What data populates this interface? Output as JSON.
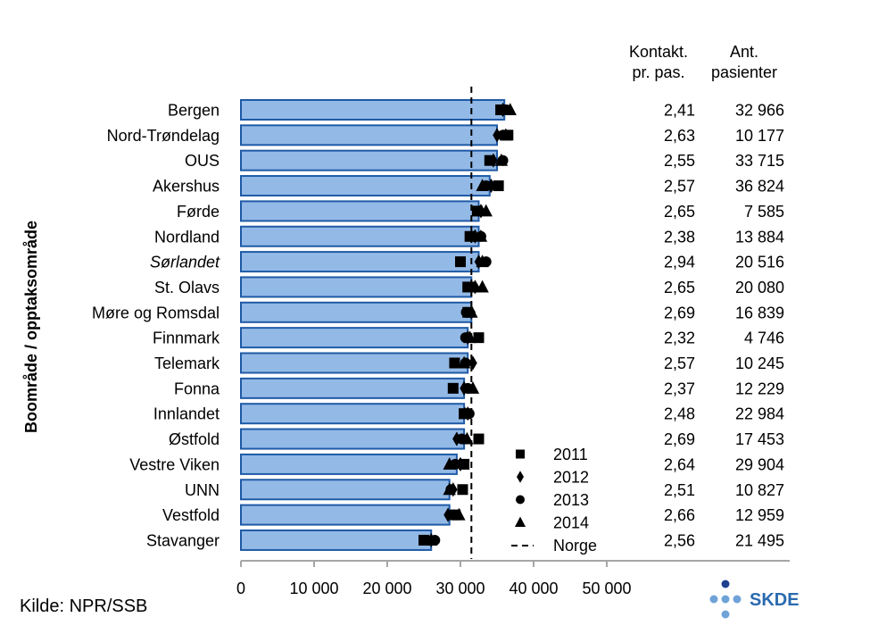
{
  "chart_data": {
    "type": "bar",
    "orientation": "horizontal",
    "ylabel": "Boområde / opptaksområde",
    "categories": [
      "Bergen",
      "Nord-Trøndelag",
      "OUS",
      "Akershus",
      "Førde",
      "Nordland",
      "Sørlandet",
      "St. Olavs",
      "Møre og Romsdal",
      "Finnmark",
      "Telemark",
      "Fonna",
      "Innlandet",
      "Østfold",
      "Vestre Viken",
      "UNN",
      "Vestfold",
      "Stavanger"
    ],
    "italic_categories": [
      "Sørlandet"
    ],
    "values": [
      36000,
      35000,
      35000,
      34000,
      32500,
      32500,
      32500,
      31500,
      31500,
      31000,
      31000,
      30500,
      30500,
      30500,
      29500,
      28500,
      28500,
      26000
    ],
    "series": [
      {
        "name": "2011",
        "marker": "square",
        "values": [
          35500,
          36500,
          34000,
          35200,
          32300,
          31300,
          30000,
          31000,
          31000,
          32500,
          29200,
          29000,
          30500,
          32500,
          30500,
          30300,
          29300,
          25000
        ]
      },
      {
        "name": "2012",
        "marker": "diamond",
        "values": [
          35800,
          35000,
          34500,
          34200,
          32800,
          32000,
          32500,
          32000,
          31500,
          31000,
          31700,
          30500,
          31000,
          29500,
          30000,
          29000,
          28300,
          26000
        ]
      },
      {
        "name": "2013",
        "marker": "circle",
        "values": [
          36300,
          35800,
          35800,
          33500,
          32500,
          32800,
          33500,
          31700,
          30800,
          30700,
          30700,
          31000,
          31200,
          30200,
          29300,
          28700,
          29000,
          26500
        ]
      },
      {
        "name": "2014",
        "marker": "triangle",
        "values": [
          36800,
          36200,
          35600,
          33000,
          33500,
          32800,
          33000,
          33000,
          31500,
          31300,
          30500,
          31700,
          30600,
          30900,
          28500,
          28500,
          29800,
          26000
        ]
      }
    ],
    "reference_line": {
      "name": "Norge",
      "value": 31500
    },
    "xlim": [
      0,
      50000
    ],
    "xticks": [
      "0",
      "10 000",
      "20 000",
      "30 000",
      "40 000",
      "50 000"
    ],
    "xtick_values": [
      0,
      10000,
      20000,
      30000,
      40000,
      50000
    ],
    "legend_position": "inside-right",
    "table": {
      "col1_header": [
        "Kontakt.",
        "pr. pas."
      ],
      "col2_header": [
        "Ant.",
        "pasienter"
      ],
      "col1": [
        "2,41",
        "2,63",
        "2,55",
        "2,57",
        "2,65",
        "2,38",
        "2,94",
        "2,65",
        "2,69",
        "2,32",
        "2,57",
        "2,37",
        "2,48",
        "2,69",
        "2,64",
        "2,51",
        "2,66",
        "2,56"
      ],
      "col2": [
        "32 966",
        "10 177",
        "33 715",
        "36 824",
        "7 585",
        "13 884",
        "20 516",
        "20 080",
        "16 839",
        "4 746",
        "10 245",
        "12 229",
        "22 984",
        "17 453",
        "29 904",
        "10 827",
        "12 959",
        "21 495"
      ]
    },
    "colors": {
      "bar_fill": "#93b9e6",
      "bar_stroke": "#1f5aa6",
      "marker": "#000000",
      "logo": "#2a6ab0",
      "logo_light": "#6fa3d8"
    }
  },
  "source": "Kilde: NPR/SSB",
  "logo": {
    "text": "SKDE"
  }
}
